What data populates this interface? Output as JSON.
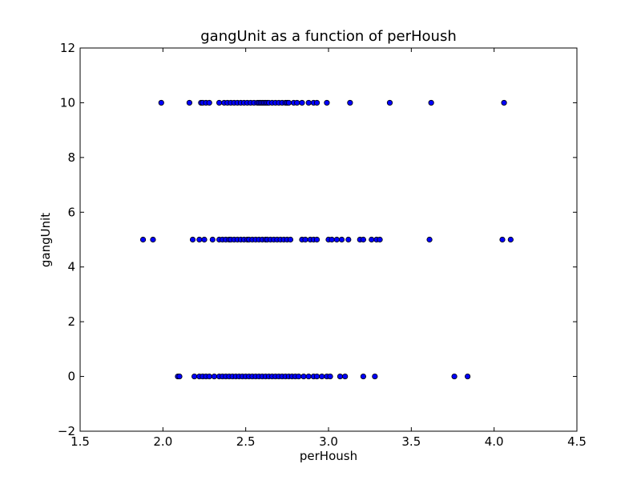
{
  "chart_data": {
    "type": "scatter",
    "title": "gangUnit as a function of perHoush",
    "xlabel": "perHoush",
    "ylabel": "gangUnit",
    "xlim": [
      1.5,
      4.5
    ],
    "ylim": [
      -2,
      12
    ],
    "x_ticks": [
      "1.5",
      "2.0",
      "2.5",
      "3.0",
      "3.5",
      "4.0",
      "4.5"
    ],
    "y_ticks": [
      "−2",
      "0",
      "2",
      "4",
      "6",
      "8",
      "10",
      "12"
    ],
    "grid": false,
    "marker_color": "#0000ff",
    "marker_edge": "#000000",
    "series": [
      {
        "points": [
          [
            1.99,
            10
          ],
          [
            2.16,
            10
          ],
          [
            2.23,
            10
          ],
          [
            2.24,
            10
          ],
          [
            2.26,
            10
          ],
          [
            2.28,
            10
          ],
          [
            2.34,
            10
          ],
          [
            2.37,
            10
          ],
          [
            2.39,
            10
          ],
          [
            2.41,
            10
          ],
          [
            2.43,
            10
          ],
          [
            2.45,
            10
          ],
          [
            2.47,
            10
          ],
          [
            2.49,
            10
          ],
          [
            2.51,
            10
          ],
          [
            2.53,
            10
          ],
          [
            2.55,
            10
          ],
          [
            2.57,
            10
          ],
          [
            2.58,
            10
          ],
          [
            2.59,
            10
          ],
          [
            2.6,
            10
          ],
          [
            2.61,
            10
          ],
          [
            2.62,
            10
          ],
          [
            2.63,
            10
          ],
          [
            2.64,
            10
          ],
          [
            2.66,
            10
          ],
          [
            2.68,
            10
          ],
          [
            2.7,
            10
          ],
          [
            2.72,
            10
          ],
          [
            2.74,
            10
          ],
          [
            2.75,
            10
          ],
          [
            2.76,
            10
          ],
          [
            2.79,
            10
          ],
          [
            2.81,
            10
          ],
          [
            2.84,
            10
          ],
          [
            2.88,
            10
          ],
          [
            2.91,
            10
          ],
          [
            2.93,
            10
          ],
          [
            2.99,
            10
          ],
          [
            3.13,
            10
          ],
          [
            3.37,
            10
          ],
          [
            3.62,
            10
          ],
          [
            4.06,
            10
          ],
          [
            1.88,
            5
          ],
          [
            1.94,
            5
          ],
          [
            2.18,
            5
          ],
          [
            2.22,
            5
          ],
          [
            2.25,
            5
          ],
          [
            2.3,
            5
          ],
          [
            2.34,
            5
          ],
          [
            2.36,
            5
          ],
          [
            2.38,
            5
          ],
          [
            2.4,
            5
          ],
          [
            2.41,
            5
          ],
          [
            2.43,
            5
          ],
          [
            2.45,
            5
          ],
          [
            2.47,
            5
          ],
          [
            2.49,
            5
          ],
          [
            2.51,
            5
          ],
          [
            2.52,
            5
          ],
          [
            2.54,
            5
          ],
          [
            2.56,
            5
          ],
          [
            2.58,
            5
          ],
          [
            2.6,
            5
          ],
          [
            2.62,
            5
          ],
          [
            2.63,
            5
          ],
          [
            2.65,
            5
          ],
          [
            2.67,
            5
          ],
          [
            2.69,
            5
          ],
          [
            2.71,
            5
          ],
          [
            2.73,
            5
          ],
          [
            2.75,
            5
          ],
          [
            2.77,
            5
          ],
          [
            2.84,
            5
          ],
          [
            2.86,
            5
          ],
          [
            2.89,
            5
          ],
          [
            2.91,
            5
          ],
          [
            2.93,
            5
          ],
          [
            3.0,
            5
          ],
          [
            3.02,
            5
          ],
          [
            3.05,
            5
          ],
          [
            3.08,
            5
          ],
          [
            3.12,
            5
          ],
          [
            3.19,
            5
          ],
          [
            3.21,
            5
          ],
          [
            3.26,
            5
          ],
          [
            3.29,
            5
          ],
          [
            3.31,
            5
          ],
          [
            3.61,
            5
          ],
          [
            4.05,
            5
          ],
          [
            4.1,
            5
          ],
          [
            2.09,
            0
          ],
          [
            2.1,
            0
          ],
          [
            2.19,
            0
          ],
          [
            2.22,
            0
          ],
          [
            2.24,
            0
          ],
          [
            2.26,
            0
          ],
          [
            2.28,
            0
          ],
          [
            2.31,
            0
          ],
          [
            2.34,
            0
          ],
          [
            2.36,
            0
          ],
          [
            2.38,
            0
          ],
          [
            2.4,
            0
          ],
          [
            2.42,
            0
          ],
          [
            2.44,
            0
          ],
          [
            2.46,
            0
          ],
          [
            2.48,
            0
          ],
          [
            2.5,
            0
          ],
          [
            2.52,
            0
          ],
          [
            2.54,
            0
          ],
          [
            2.56,
            0
          ],
          [
            2.58,
            0
          ],
          [
            2.6,
            0
          ],
          [
            2.62,
            0
          ],
          [
            2.64,
            0
          ],
          [
            2.66,
            0
          ],
          [
            2.68,
            0
          ],
          [
            2.7,
            0
          ],
          [
            2.72,
            0
          ],
          [
            2.74,
            0
          ],
          [
            2.76,
            0
          ],
          [
            2.78,
            0
          ],
          [
            2.8,
            0
          ],
          [
            2.82,
            0
          ],
          [
            2.85,
            0
          ],
          [
            2.88,
            0
          ],
          [
            2.91,
            0
          ],
          [
            2.93,
            0
          ],
          [
            2.96,
            0
          ],
          [
            2.99,
            0
          ],
          [
            3.01,
            0
          ],
          [
            3.07,
            0
          ],
          [
            3.1,
            0
          ],
          [
            3.21,
            0
          ],
          [
            3.28,
            0
          ],
          [
            3.76,
            0
          ],
          [
            3.84,
            0
          ]
        ]
      }
    ]
  }
}
